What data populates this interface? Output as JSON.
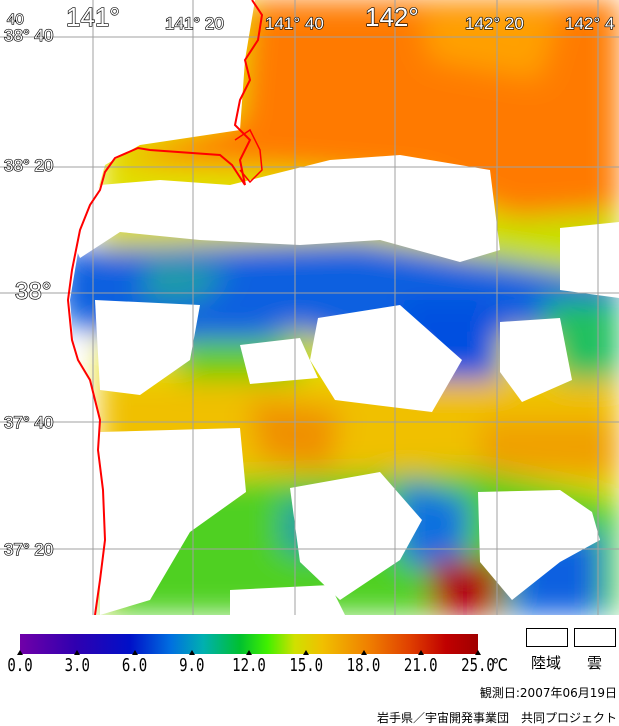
{
  "map": {
    "lon_labels": [
      "141°",
      "141° 20",
      "141° 40",
      "142°",
      "142° 20",
      "142° 4"
    ],
    "lat_labels": [
      "38° 40",
      "38° 20",
      "38°",
      "37° 40",
      "37° 20"
    ],
    "corner_label": "40",
    "colors": {
      "coast": "#ff0000",
      "grid": "#a0a0a0",
      "land_cloud": "#ffffff"
    }
  },
  "colorbar": {
    "ticks": [
      "0.0",
      "3.0",
      "6.0",
      "9.0",
      "12.0",
      "15.0",
      "18.0",
      "21.0",
      "25.0"
    ],
    "unit": "℃",
    "min": 0.0,
    "max": 25.0
  },
  "legend": {
    "land": "陸域",
    "cloud": "雲"
  },
  "observation_date": "観測日:2007年06月19日",
  "credit": "岩手県／宇宙開発事業団　共同プロジェクト"
}
